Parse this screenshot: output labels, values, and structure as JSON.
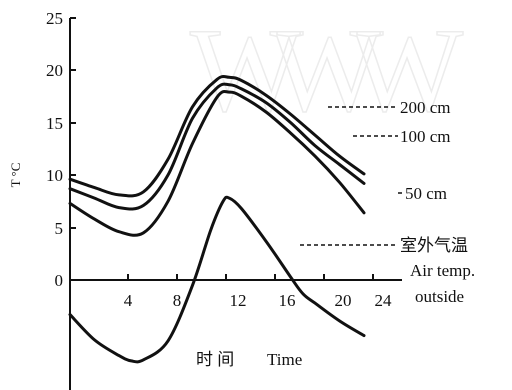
{
  "chart_data": {
    "type": "line",
    "ylabel": "T °C",
    "xlabel_cn": "时 间",
    "xlabel_en": "Time",
    "xlim": [
      0,
      25
    ],
    "ylim": [
      -8.5,
      25
    ],
    "x_ticks": [
      "4",
      "8",
      "12",
      "16",
      "20",
      "24"
    ],
    "x_tick_values": [
      4,
      8,
      12,
      16,
      20,
      24
    ],
    "y_ticks": [
      "0",
      "5",
      "10",
      "15",
      "20",
      "25"
    ],
    "y_tick_values": [
      0,
      5,
      10,
      15,
      20,
      25
    ],
    "grid": false,
    "series": [
      {
        "name": "200 cm",
        "x": [
          0,
          2,
          4,
          6,
          8,
          10,
          12,
          13,
          14,
          16,
          18,
          20,
          22,
          24
        ],
        "y": [
          9.6,
          8.8,
          8.1,
          8.4,
          11.5,
          16.5,
          19.1,
          19.3,
          19.0,
          17.6,
          15.8,
          13.8,
          11.8,
          10.1
        ]
      },
      {
        "name": "100 cm",
        "x": [
          0,
          2,
          4,
          6,
          8,
          10,
          12,
          13,
          14,
          16,
          18,
          20,
          22,
          24
        ],
        "y": [
          8.7,
          7.8,
          6.9,
          7.1,
          10.0,
          15.4,
          18.3,
          18.6,
          18.2,
          16.9,
          15.0,
          12.8,
          11.0,
          9.2
        ]
      },
      {
        "name": "50 cm",
        "x": [
          0,
          2,
          4,
          6,
          8,
          10,
          12,
          13,
          14,
          16,
          18,
          20,
          22,
          24
        ],
        "y": [
          7.3,
          5.8,
          4.6,
          4.5,
          7.5,
          13.0,
          17.4,
          17.9,
          17.5,
          16.0,
          14.0,
          11.8,
          9.3,
          6.4
        ]
      },
      {
        "name": "室外气温 Air temp. outside",
        "x": [
          0,
          2,
          4,
          5,
          6,
          8,
          10,
          11.5,
          12.5,
          13,
          14,
          16,
          18,
          19,
          20,
          22,
          24
        ],
        "y": [
          -3.3,
          -5.7,
          -7.2,
          -7.7,
          -7.6,
          -5.8,
          -0.5,
          4.8,
          7.5,
          7.8,
          6.8,
          3.7,
          0.3,
          -1.3,
          -2.2,
          -3.9,
          -5.3
        ]
      }
    ],
    "labels": {
      "s200": "200 cm",
      "s100": "100 cm",
      "s50": "50 cm",
      "air_cn": "室外气温",
      "air_en1": "Air temp.",
      "air_en2": "outside"
    }
  }
}
